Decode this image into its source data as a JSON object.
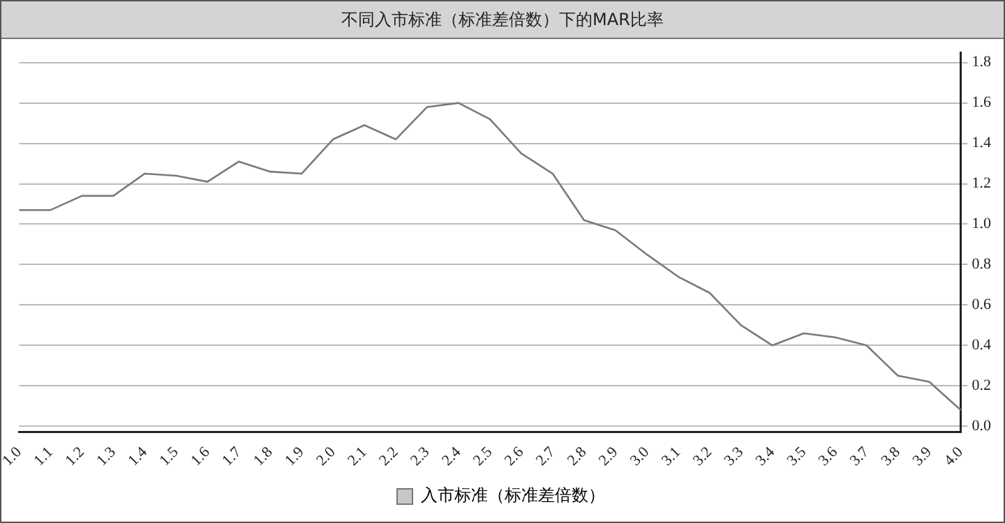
{
  "chart_data": {
    "type": "line",
    "title": "不同入市标准（标准差倍数）下的MAR比率",
    "categories": [
      "1.0",
      "1.1",
      "1.2",
      "1.3",
      "1.4",
      "1.5",
      "1.6",
      "1.7",
      "1.8",
      "1.9",
      "2.0",
      "2.1",
      "2.2",
      "2.3",
      "2.4",
      "2.5",
      "2.6",
      "2.7",
      "2.8",
      "2.9",
      "3.0",
      "3.1",
      "3.2",
      "3.3",
      "3.4",
      "3.5",
      "3.6",
      "3.7",
      "3.8",
      "3.9",
      "4.0"
    ],
    "series": [
      {
        "name": "入市标准（标准差倍数）",
        "color": "#7a7a7a",
        "values": [
          1.07,
          1.07,
          1.14,
          1.14,
          1.25,
          1.24,
          1.21,
          1.31,
          1.26,
          1.25,
          1.42,
          1.49,
          1.42,
          1.58,
          1.6,
          1.52,
          1.35,
          1.25,
          1.02,
          0.97,
          0.85,
          0.74,
          0.66,
          0.5,
          0.4,
          0.46,
          0.44,
          0.4,
          0.25,
          0.22,
          0.08
        ]
      }
    ],
    "ylim": [
      -0.03,
      1.85
    ],
    "yticks": [
      {
        "value": 0,
        "label": "0.0"
      },
      {
        "value": 0.2,
        "label": "0.2"
      },
      {
        "value": 0.4,
        "label": "0.4"
      },
      {
        "value": 0.6,
        "label": "0.6"
      },
      {
        "value": 0.8,
        "label": "0.8"
      },
      {
        "value": 1,
        "label": "1.0"
      },
      {
        "value": 1.2,
        "label": "1.2"
      },
      {
        "value": 1.4,
        "label": "1.4"
      },
      {
        "value": 1.6,
        "label": "1.6"
      },
      {
        "value": 1.8,
        "label": "1.8"
      }
    ],
    "grid": "y",
    "legend": "bottom",
    "marker": "none",
    "line_style": "solid"
  }
}
